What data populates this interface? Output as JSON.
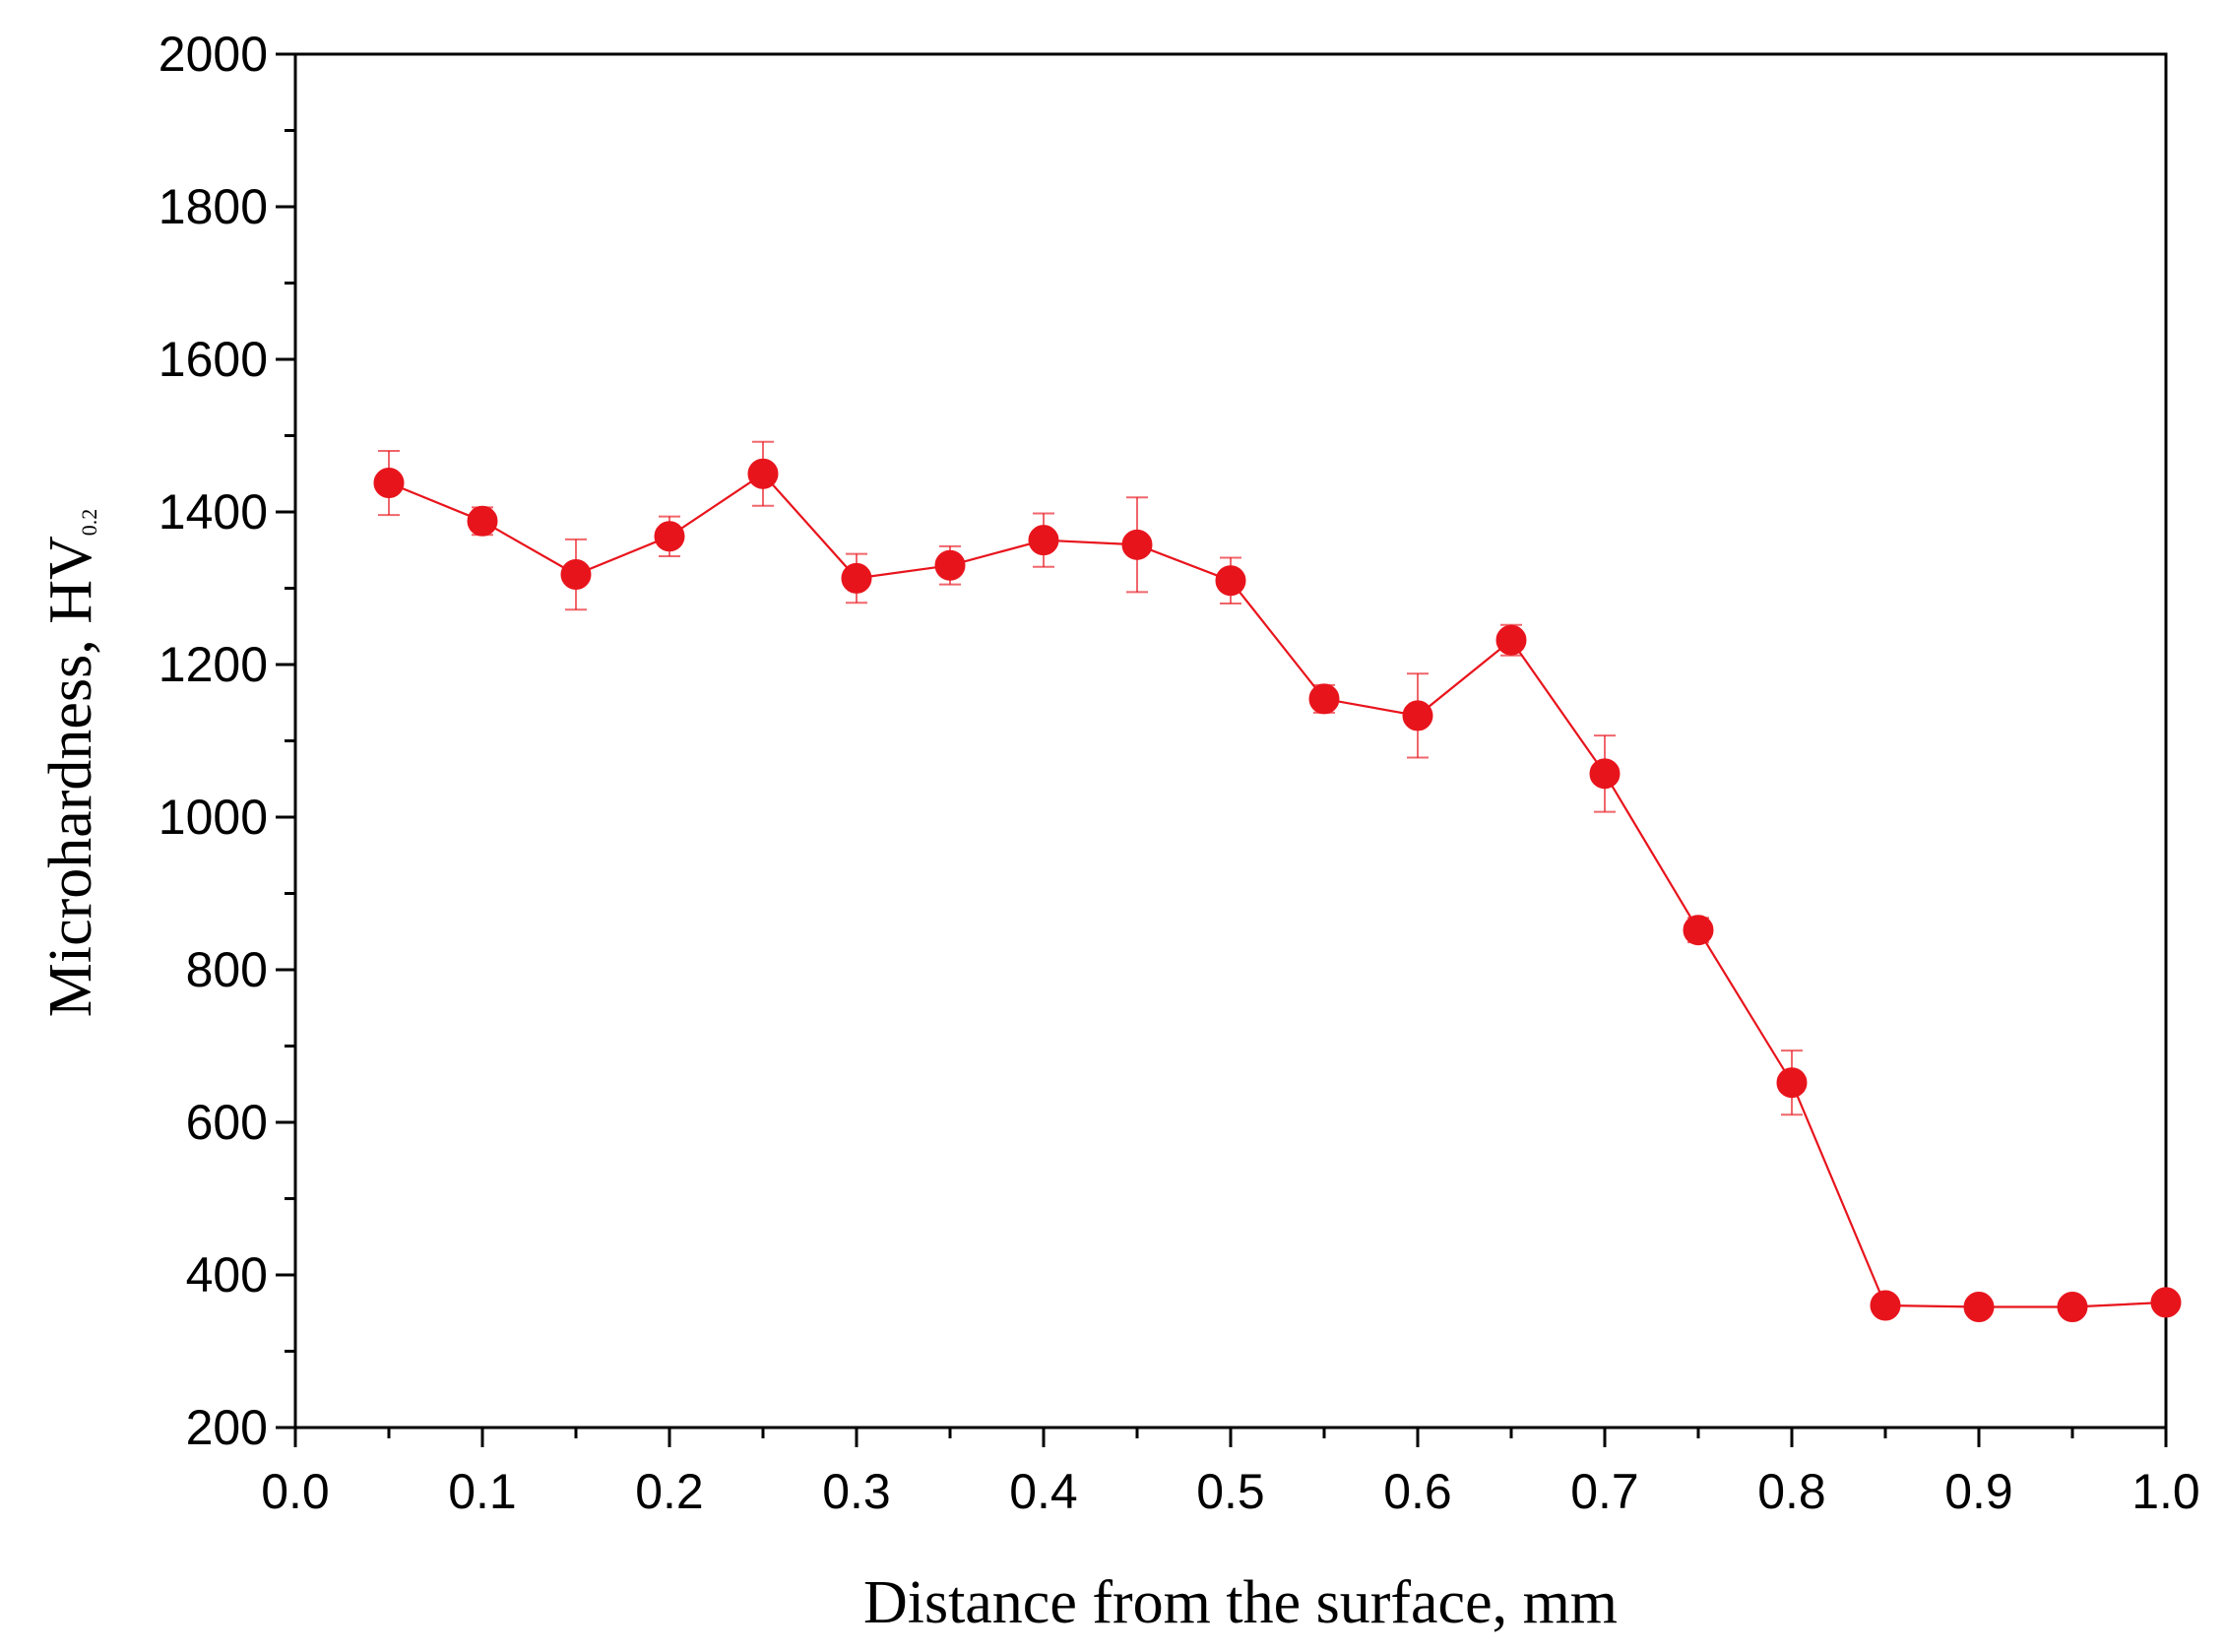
{
  "chart_data": {
    "type": "line",
    "title": "",
    "xlabel": "Distance from the surface, mm",
    "ylabel": "Microhardness, HV",
    "ylabel_subscript": "0.2",
    "xlim": [
      0.0,
      1.0
    ],
    "ylim": [
      200,
      2000
    ],
    "x_ticks": [
      0.0,
      0.1,
      0.2,
      0.3,
      0.4,
      0.5,
      0.6,
      0.7,
      0.8,
      0.9,
      1.0
    ],
    "x_tick_labels": [
      "0.0",
      "0.1",
      "0.2",
      "0.3",
      "0.4",
      "0.5",
      "0.6",
      "0.7",
      "0.8",
      "0.9",
      "1.0"
    ],
    "y_ticks": [
      200,
      400,
      600,
      800,
      1000,
      1200,
      1400,
      1600,
      1800,
      2000
    ],
    "y_tick_labels": [
      "200",
      "400",
      "600",
      "800",
      "1000",
      "1200",
      "1400",
      "1600",
      "1800",
      "2000"
    ],
    "grid": false,
    "series": [
      {
        "name": "Microhardness",
        "color": "#e8141c",
        "x": [
          0.05,
          0.1,
          0.15,
          0.2,
          0.25,
          0.3,
          0.35,
          0.4,
          0.45,
          0.5,
          0.55,
          0.6,
          0.65,
          0.7,
          0.75,
          0.8,
          0.85,
          0.9,
          0.95,
          1.0
        ],
        "y": [
          1438,
          1388,
          1318,
          1368,
          1450,
          1313,
          1330,
          1363,
          1357,
          1310,
          1155,
          1133,
          1232,
          1057,
          852,
          652,
          360,
          358,
          358,
          364
        ],
        "yerr": [
          42,
          18,
          46,
          26,
          42,
          32,
          25,
          35,
          62,
          30,
          18,
          55,
          20,
          50,
          16,
          42,
          10,
          10,
          10,
          10
        ]
      }
    ]
  }
}
